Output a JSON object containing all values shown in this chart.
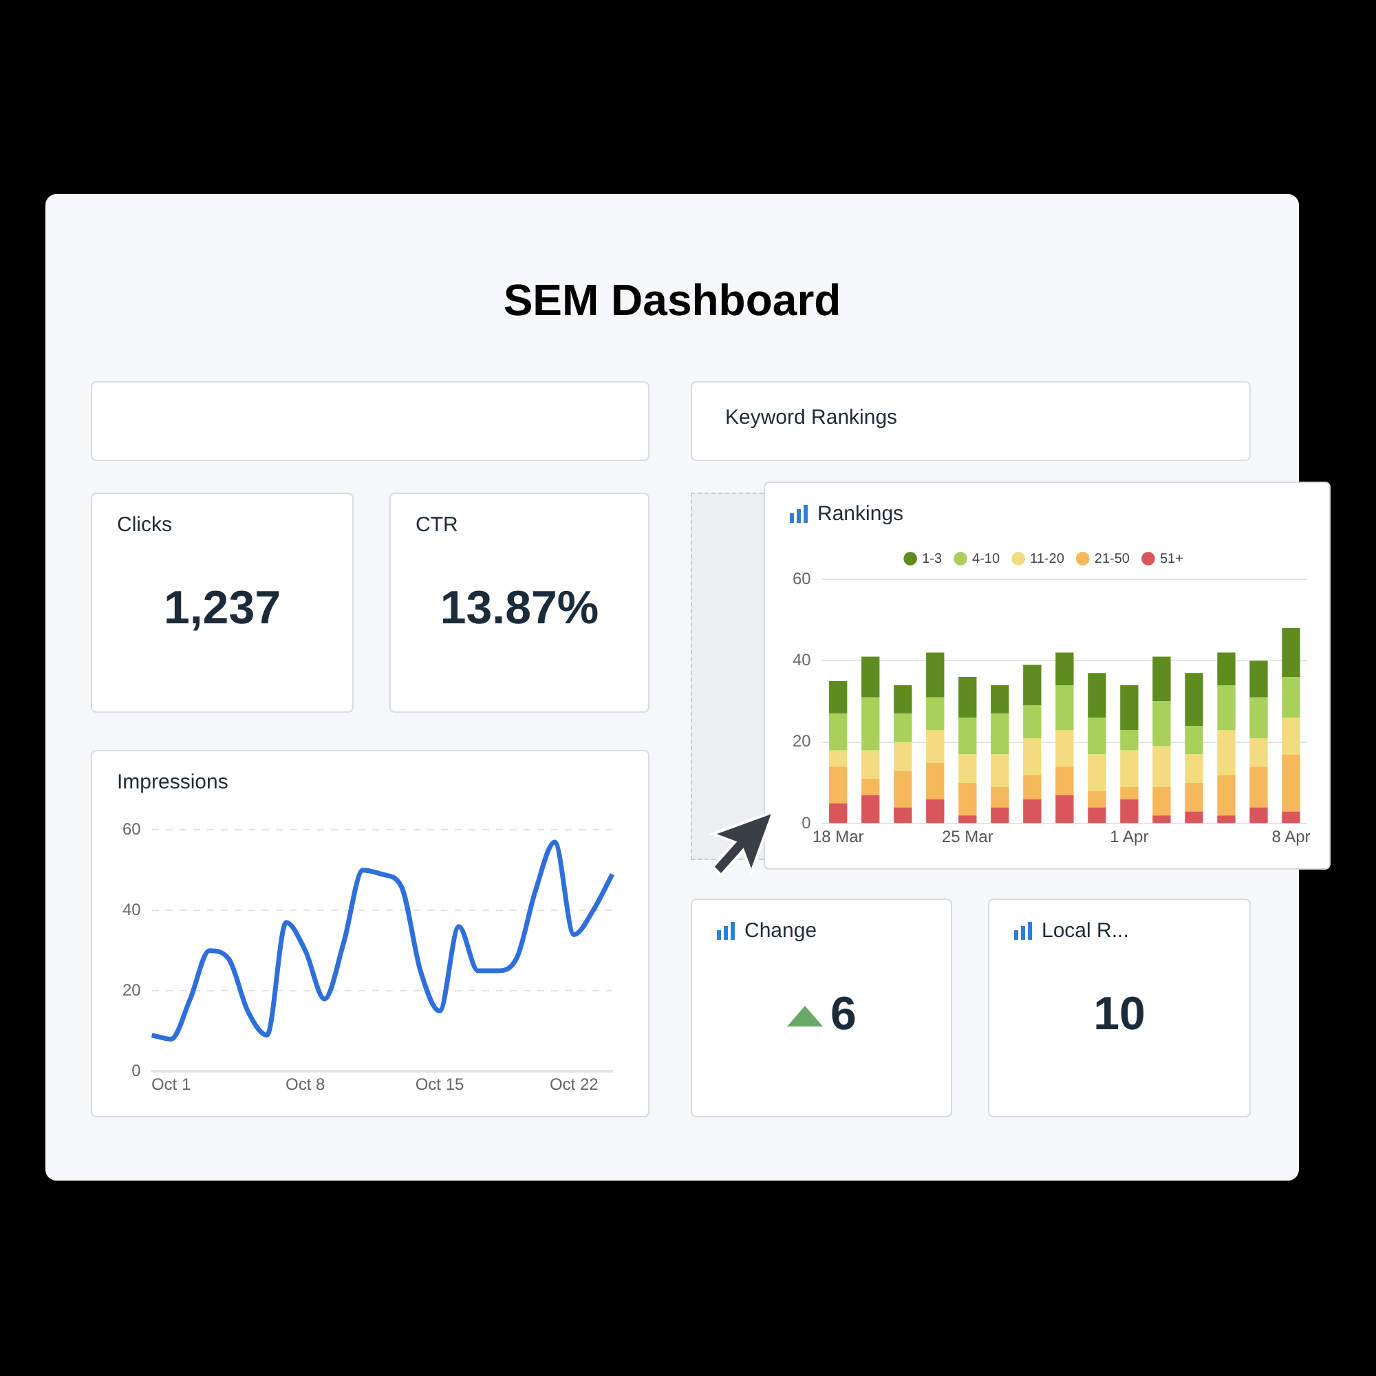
{
  "chart_data": [
    {
      "type": "other",
      "title": "SEM Dashboard",
      "annotations": [
        "Keyword Rankings"
      ]
    },
    {
      "type": "other",
      "title": "Clicks",
      "annotations": [
        "1,237"
      ]
    },
    {
      "type": "other",
      "title": "CTR",
      "annotations": [
        "13.87%"
      ]
    },
    {
      "type": "line",
      "title": "Impressions",
      "categories": [
        null,
        "Oct 1",
        null,
        null,
        null,
        null,
        null,
        null,
        "Oct 8",
        null,
        null,
        null,
        null,
        null,
        null,
        "Oct 15",
        null,
        null,
        null,
        null,
        null,
        null,
        "Oct 22",
        null,
        null
      ],
      "series": [
        {
          "color": "#2f6fdc",
          "values": [
            9,
            8,
            18,
            30,
            28,
            15,
            9,
            37,
            30,
            18,
            32,
            50,
            49,
            46,
            25,
            15,
            36,
            25,
            25,
            28,
            45,
            57,
            34,
            40,
            49
          ]
        }
      ],
      "ylim": [
        0,
        60
      ],
      "yticks": [
        0,
        20,
        40,
        60
      ],
      "grid": "y"
    },
    {
      "type": "bar",
      "title": "Rankings",
      "stacked": true,
      "legend": "top",
      "grid": "y",
      "ylim": [
        0,
        60
      ],
      "yticks": [
        0,
        20,
        40,
        60
      ],
      "categories": [
        "18 Mar",
        null,
        null,
        null,
        "25 Mar",
        null,
        null,
        null,
        null,
        "1 Apr",
        null,
        null,
        null,
        null,
        "8 Apr"
      ],
      "series": [
        {
          "name": "51+",
          "color": "#d9575a",
          "values": [
            5,
            7,
            4,
            6,
            2,
            4,
            6,
            7,
            4,
            6,
            2,
            3,
            2,
            4,
            3
          ]
        },
        {
          "name": "21-50",
          "color": "#f5b85a",
          "values": [
            9,
            4,
            9,
            9,
            8,
            5,
            6,
            7,
            4,
            3,
            7,
            7,
            10,
            10,
            14
          ]
        },
        {
          "name": "11-20",
          "color": "#f3dc80",
          "values": [
            4,
            7,
            7,
            8,
            7,
            8,
            9,
            9,
            9,
            9,
            10,
            7,
            11,
            7,
            9
          ]
        },
        {
          "name": "4-10",
          "color": "#a8d05a",
          "values": [
            9,
            13,
            7,
            8,
            9,
            10,
            8,
            11,
            9,
            5,
            11,
            7,
            11,
            10,
            10
          ]
        },
        {
          "name": "1-3",
          "color": "#5e8c1f",
          "values": [
            8,
            10,
            7,
            11,
            10,
            7,
            10,
            8,
            11,
            11,
            11,
            13,
            8,
            9,
            12
          ]
        }
      ]
    },
    {
      "type": "other",
      "title": "Change",
      "annotations": [
        "6"
      ]
    },
    {
      "type": "other",
      "title": "Local R...",
      "annotations": [
        "10"
      ]
    }
  ]
}
